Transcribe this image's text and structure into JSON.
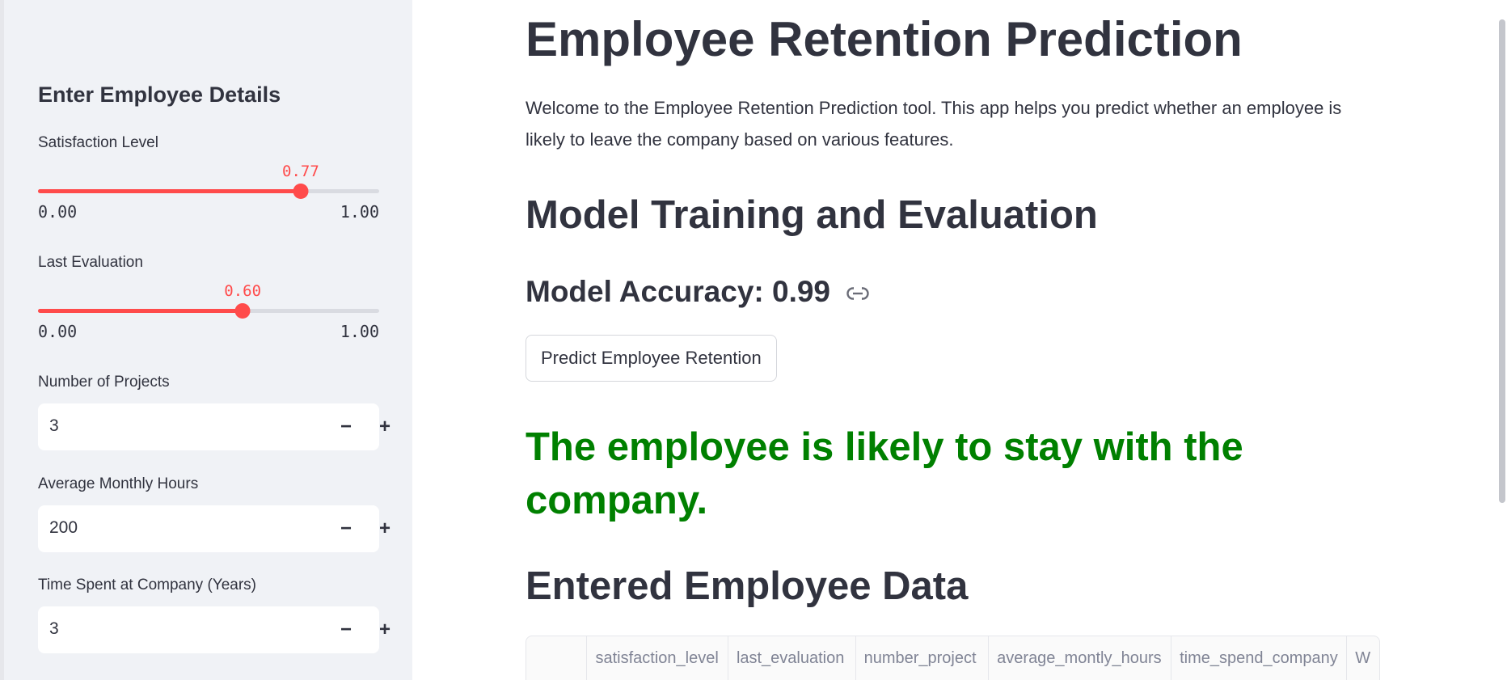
{
  "sidebar": {
    "title": "Enter Employee Details",
    "satisfaction": {
      "label": "Satisfaction Level",
      "value": 0.77,
      "value_text": "0.77",
      "min": "0.00",
      "max": "1.00"
    },
    "evaluation": {
      "label": "Last Evaluation",
      "value": 0.6,
      "value_text": "0.60",
      "min": "0.00",
      "max": "1.00"
    },
    "projects": {
      "label": "Number of Projects",
      "value": "3"
    },
    "hours": {
      "label": "Average Monthly Hours",
      "value": "200"
    },
    "time": {
      "label": "Time Spent at Company (Years)",
      "value": "3"
    },
    "minus_label": "−",
    "plus_label": "+"
  },
  "main": {
    "title": "Employee Retention Prediction",
    "intro": "Welcome to the Employee Retention Prediction tool. This app helps you predict whether an employee is likely to leave the company based on various features.",
    "section_training": "Model Training and Evaluation",
    "accuracy": "Model Accuracy: 0.99",
    "predict_button": "Predict Employee Retention",
    "result": "The employee is likely to stay with the company.",
    "section_data": "Entered Employee Data",
    "table_headers": [
      "",
      "satisfaction_level",
      "last_evaluation",
      "number_project",
      "average_montly_hours",
      "time_spend_company",
      "W"
    ]
  },
  "colors": {
    "accent": "#ff4b4b",
    "result": "#008000",
    "sidebar_bg": "#f0f2f6"
  },
  "icons": [
    "link-icon"
  ]
}
